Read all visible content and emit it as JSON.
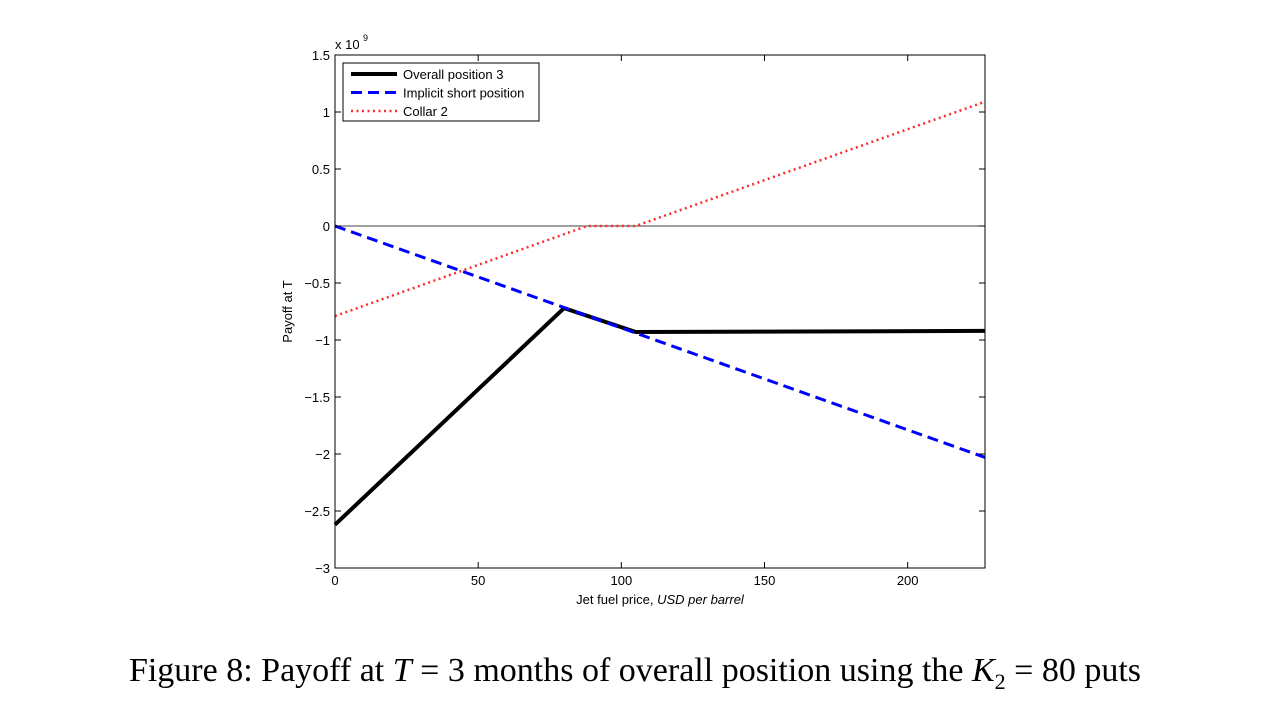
{
  "chart_data": {
    "type": "line",
    "xlabel_plain": "Jet fuel price, ",
    "xlabel_italic": "USD per barrel",
    "ylabel": "Payoff at T",
    "y_exponent_label": "x 10",
    "y_exponent_sup": "9",
    "xlim": [
      0,
      227
    ],
    "ylim": [
      -3,
      1.5
    ],
    "xticks": [
      0,
      50,
      100,
      150,
      200
    ],
    "yticks": [
      -3,
      -2.5,
      -2,
      -1.5,
      -1,
      -0.5,
      0,
      0.5,
      1,
      1.5
    ],
    "ytick_labels": [
      "−3",
      "−2.5",
      "−2",
      "−1.5",
      "−1",
      "−0.5",
      "0",
      "0.5",
      "1",
      "1.5"
    ],
    "zero_line": true,
    "grid": false,
    "legend_position": "top-left",
    "series": [
      {
        "name": "Overall position 3",
        "style": "solid",
        "color": "#000000",
        "x": [
          0,
          80,
          105,
          227
        ],
        "y": [
          -2.62,
          -0.72,
          -0.93,
          -0.92
        ]
      },
      {
        "name": "Implicit short position",
        "style": "dashed",
        "color": "#0000ff",
        "x": [
          0,
          227
        ],
        "y": [
          0,
          -2.03
        ]
      },
      {
        "name": "Collar 2",
        "style": "dotted",
        "color": "#ff2a2a",
        "x": [
          0,
          88,
          105,
          227
        ],
        "y": [
          -0.79,
          0,
          0,
          1.09
        ]
      }
    ]
  },
  "caption": {
    "prefix": "Figure 8: Payoff at ",
    "t_var": "T",
    "mid": " = 3 months of overall position using the ",
    "k_var": "K",
    "k_sub": "2",
    "suffix": " = 80 puts"
  }
}
